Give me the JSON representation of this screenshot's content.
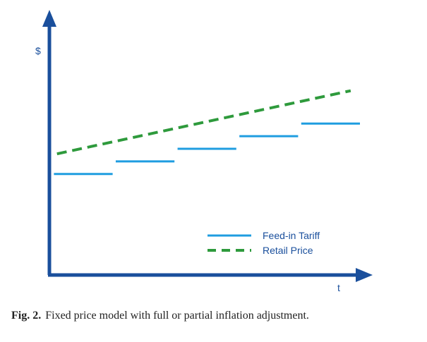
{
  "chart_data": {
    "type": "line",
    "ylabel": "$",
    "xlabel": "t",
    "xlim": [
      0,
      10
    ],
    "ylim": [
      0,
      10
    ],
    "legend_position": "bottom-right",
    "grid": false,
    "series": [
      {
        "name": "Feed-in Tariff",
        "style": "step",
        "color": "#1f9de0",
        "segments": [
          {
            "x": [
              0.1,
              2.0
            ],
            "y": 4.0
          },
          {
            "x": [
              2.1,
              4.0
            ],
            "y": 4.5
          },
          {
            "x": [
              4.1,
              6.0
            ],
            "y": 5.0
          },
          {
            "x": [
              6.1,
              8.0
            ],
            "y": 5.5
          },
          {
            "x": [
              8.1,
              10.0
            ],
            "y": 6.0
          }
        ]
      },
      {
        "name": "Retail Price",
        "style": "dashed",
        "color": "#2e9a3c",
        "points": [
          [
            0.2,
            4.8
          ],
          [
            9.7,
            7.3
          ]
        ]
      }
    ]
  },
  "caption": {
    "label": "Fig. 2.",
    "text": "Fixed price model with full or partial inflation adjustment."
  }
}
